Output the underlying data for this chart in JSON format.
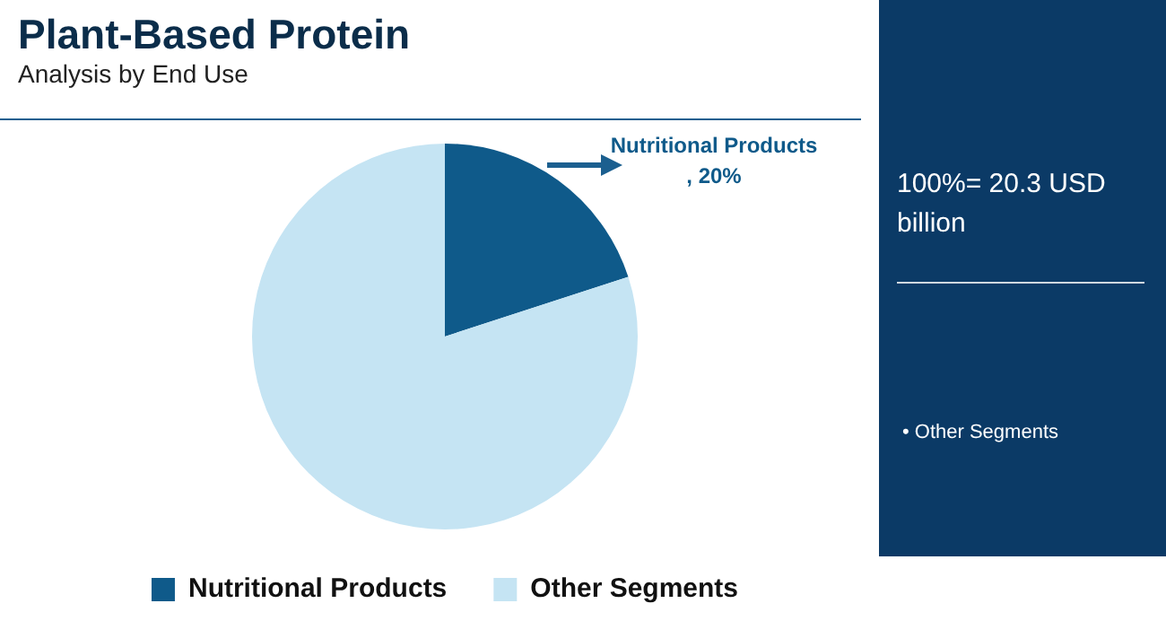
{
  "chart_data": {
    "type": "pie",
    "title": "Plant-Based Protein",
    "subtitle": "Analysis by End Use",
    "categories": [
      "Nutritional Products",
      "Other Segments"
    ],
    "values": [
      20,
      80
    ],
    "colors": [
      "#0f5a8a",
      "#c5e4f3"
    ],
    "legend": "bottom",
    "annotations": [
      "Nutritional Products , 20%",
      "100%= 20.3 USD billion",
      "• Other Segments"
    ]
  }
}
